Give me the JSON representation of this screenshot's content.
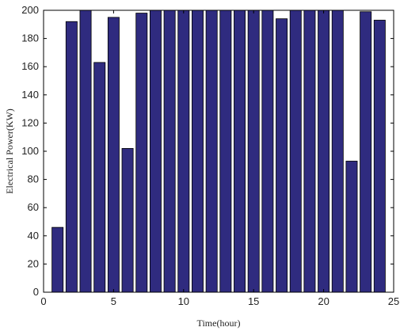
{
  "chart_data": {
    "type": "bar",
    "title": "",
    "xlabel": "Time(hour)",
    "ylabel": "Electrical Power(KW)",
    "x": [
      1,
      2,
      3,
      4,
      5,
      6,
      7,
      8,
      9,
      10,
      11,
      12,
      13,
      14,
      15,
      16,
      17,
      18,
      19,
      20,
      21,
      22,
      23,
      24
    ],
    "values": [
      46,
      192,
      200,
      163,
      195,
      102,
      198,
      200,
      200,
      200,
      200,
      200,
      200,
      200,
      200,
      200,
      194,
      200,
      200,
      200,
      200,
      93,
      199,
      193
    ],
    "xlim": [
      0,
      25
    ],
    "ylim": [
      0,
      200
    ],
    "xticks": [
      0,
      5,
      10,
      15,
      20,
      25
    ],
    "yticks": [
      0,
      20,
      40,
      60,
      80,
      100,
      120,
      140,
      160,
      180,
      200
    ],
    "grid": false,
    "legend": "none",
    "colors": {
      "bar_fill": "#2f2b7f",
      "bar_edge": "#000000",
      "axis": "#000000"
    }
  }
}
